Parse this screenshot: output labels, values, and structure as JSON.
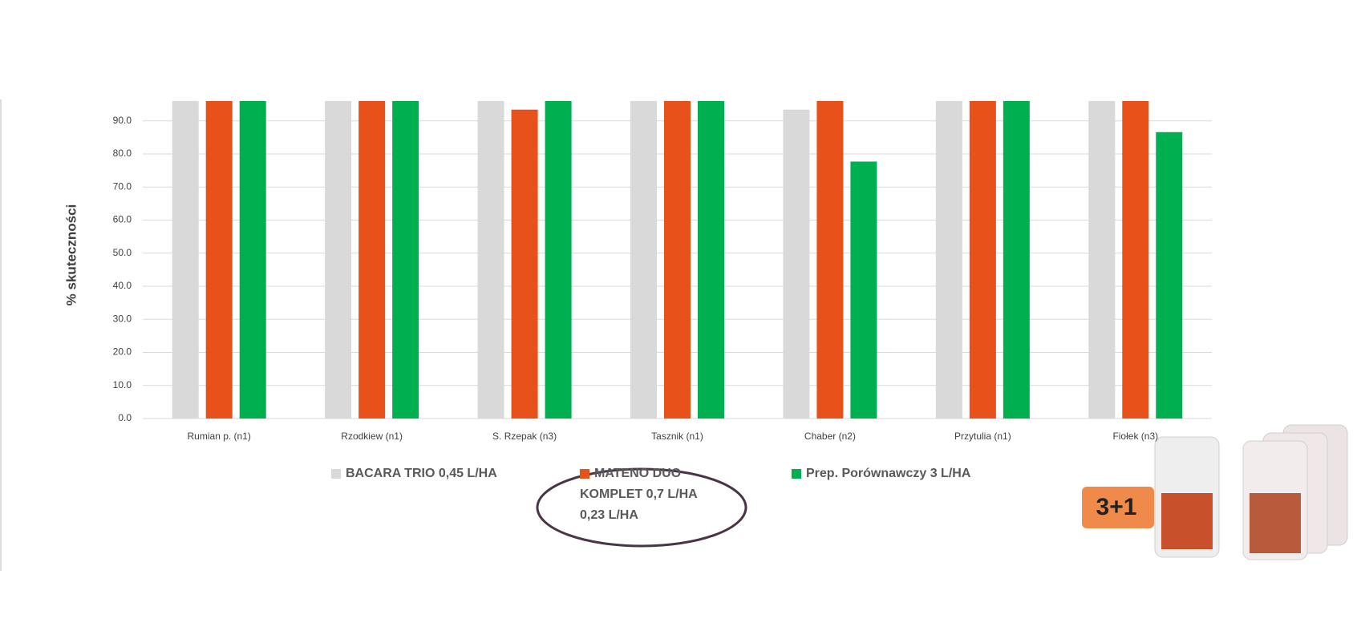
{
  "chart_data": {
    "type": "bar",
    "y_label": "% skuteczności",
    "categories": [
      "Rumian p. (n1)",
      "Rzodkiew (n1)",
      "S. Rzepak (n3)",
      "Tasznik (n1)",
      "Chaber (n2)",
      "Przytulia (n1)",
      "Fiołek (n3)"
    ],
    "series": [
      {
        "name": "BACARA TRIO 0,45  L/HA",
        "color": "#d9d9d9",
        "values": [
          96,
          96,
          96,
          96,
          93.4,
          96,
          96
        ]
      },
      {
        "name": "MATENO DUO KOMPLET 0,7  L/HA 0,23  L/HA",
        "color": "#e8511a",
        "values": [
          96,
          96,
          93.4,
          96,
          96,
          96,
          96
        ]
      },
      {
        "name": "Prep. Porównawczy 3  L/HA",
        "color": "#00b050",
        "values": [
          96,
          96,
          96,
          96,
          77.7,
          96,
          86.6
        ]
      }
    ],
    "ylim": [
      0,
      96
    ],
    "yticks": [
      {
        "value": 0,
        "label": "0.0"
      },
      {
        "value": 10,
        "label": "10.0"
      },
      {
        "value": 20,
        "label": "20.0"
      },
      {
        "value": 30,
        "label": "30.0"
      },
      {
        "value": 40,
        "label": "40.0"
      },
      {
        "value": 50,
        "label": "50.0"
      },
      {
        "value": 60,
        "label": "60.0"
      },
      {
        "value": 70,
        "label": "70.0"
      },
      {
        "value": 80,
        "label": "80.0"
      },
      {
        "value": 90,
        "label": "90.0"
      }
    ],
    "grid": true
  },
  "promo": {
    "badge": "3+1"
  }
}
